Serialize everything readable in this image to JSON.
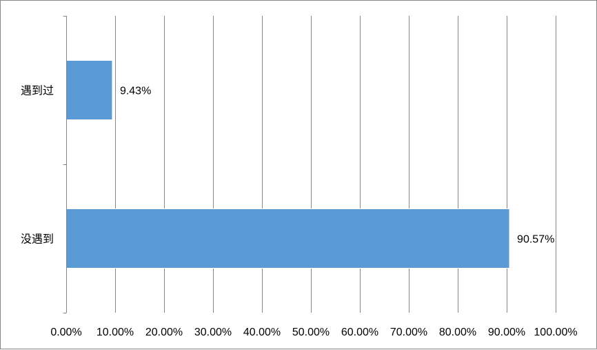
{
  "chart_data": {
    "type": "bar",
    "orientation": "horizontal",
    "title": "",
    "xlabel": "",
    "ylabel": "",
    "categories": [
      "遇到过",
      "没遇到"
    ],
    "values": [
      9.43,
      90.57
    ],
    "data_labels": [
      "9.43%",
      "90.57%"
    ],
    "x_ticks": [
      0,
      10,
      20,
      30,
      40,
      50,
      60,
      70,
      80,
      90,
      100
    ],
    "x_tick_labels": [
      "0.00%",
      "10.00%",
      "20.00%",
      "30.00%",
      "40.00%",
      "50.00%",
      "60.00%",
      "70.00%",
      "80.00%",
      "90.00%",
      "100.00%"
    ],
    "xlim": [
      0,
      100
    ],
    "grid": true,
    "legend": "none",
    "bar_color": "#5b9bd5",
    "gridline_color": "#868686"
  }
}
